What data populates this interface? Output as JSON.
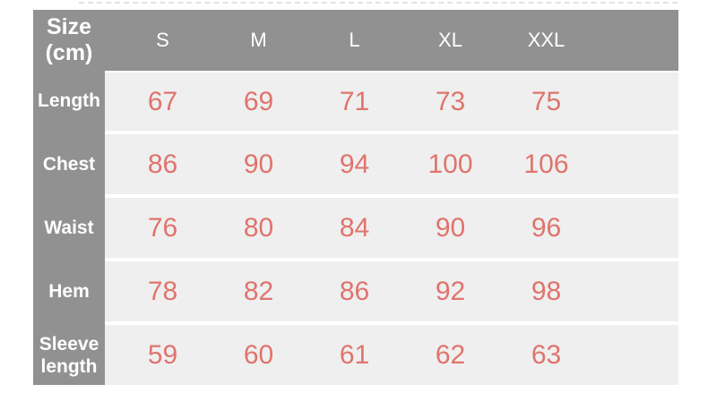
{
  "colors": {
    "header_bg": "#919192",
    "row_bg": "#efefef",
    "value_color": "#df746d",
    "header_text": "#ffffff",
    "dash_color": "#e2e2e2",
    "page_bg": "#ffffff"
  },
  "chart_data": {
    "type": "table",
    "title": "Size (cm)",
    "corner_header_lines": [
      "Size",
      "(cm)"
    ],
    "columns": [
      "S",
      "M",
      "L",
      "XL",
      "XXL"
    ],
    "rows": [
      {
        "label": "Length",
        "values": [
          67,
          69,
          71,
          73,
          75
        ]
      },
      {
        "label": "Chest",
        "values": [
          86,
          90,
          94,
          100,
          106
        ]
      },
      {
        "label": "Waist",
        "values": [
          76,
          80,
          84,
          90,
          96
        ]
      },
      {
        "label": "Hem",
        "values": [
          78,
          82,
          86,
          92,
          98
        ]
      },
      {
        "label": "Sleeve length",
        "values": [
          59,
          60,
          61,
          62,
          63
        ]
      }
    ]
  }
}
